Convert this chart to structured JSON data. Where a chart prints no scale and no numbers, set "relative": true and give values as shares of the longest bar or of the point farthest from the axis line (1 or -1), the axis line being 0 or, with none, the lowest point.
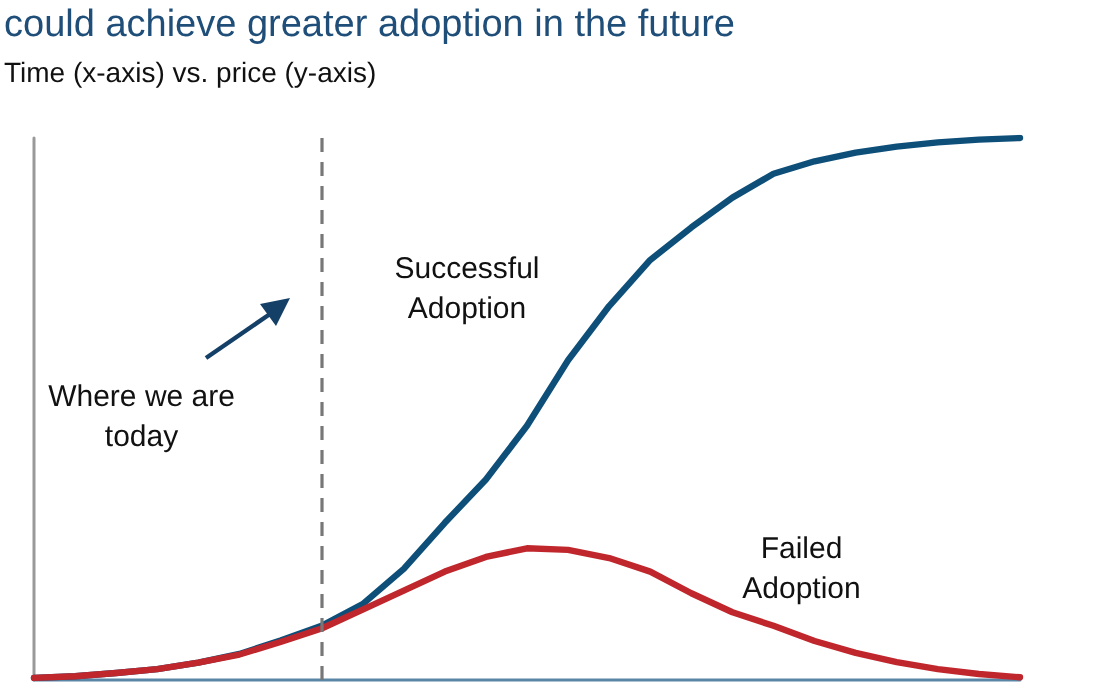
{
  "chart_data": {
    "type": "line",
    "title": "could achieve greater adoption in the future",
    "subtitle": "Time (x-axis) vs. price (y-axis)",
    "relative": true,
    "categories": [
      null,
      null,
      null,
      null,
      null,
      null,
      null,
      null,
      null,
      null,
      null,
      null,
      null,
      null,
      null,
      null,
      null,
      null,
      null,
      null,
      null,
      null,
      null,
      null,
      null
    ],
    "grid": false,
    "legend": false,
    "marker": "none",
    "line_style": "solid",
    "series": [
      {
        "name": "Successful Adoption",
        "color": "#0e4f7a",
        "values": [
          0.004,
          0.007,
          0.013,
          0.02,
          0.032,
          0.048,
          0.073,
          0.1,
          0.14,
          0.205,
          0.29,
          0.37,
          0.469,
          0.59,
          0.69,
          0.775,
          0.835,
          0.89,
          0.934,
          0.957,
          0.973,
          0.984,
          0.992,
          0.997,
          1
        ]
      },
      {
        "name": "Failed Adoption",
        "color": "#c0272d",
        "values": [
          0.004,
          0.007,
          0.013,
          0.02,
          0.032,
          0.047,
          0.07,
          0.095,
          0.13,
          0.165,
          0.2,
          0.227,
          0.243,
          0.24,
          0.225,
          0.2,
          0.16,
          0.125,
          0.1,
          0.072,
          0.05,
          0.033,
          0.02,
          0.011,
          0.005
        ]
      }
    ],
    "annotations": [
      "Where we are today"
    ]
  }
}
